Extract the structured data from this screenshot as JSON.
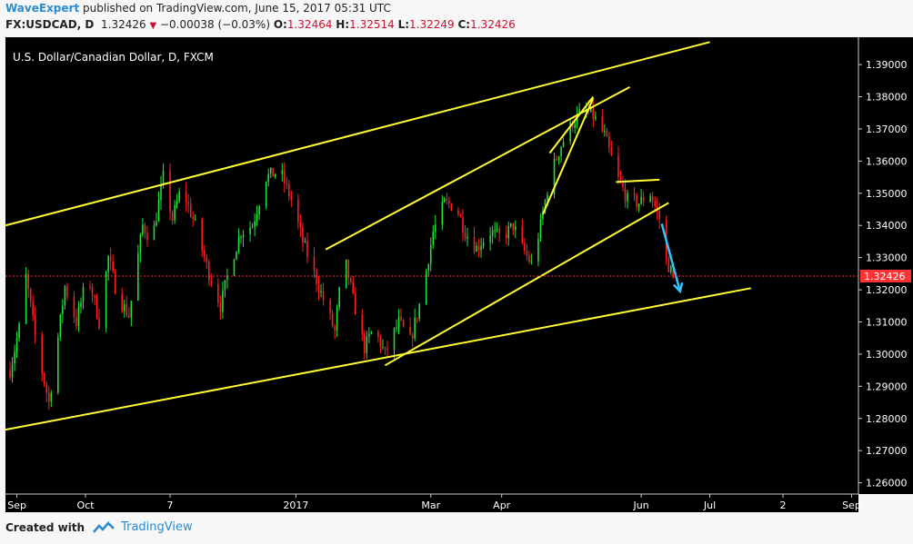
{
  "header": {
    "author": "WaveExpert",
    "published_text": "published on TradingView.com, June 15, 2017 05:31 UTC",
    "symbol": "FX:USDCAD, D",
    "last": "1.32426",
    "change": "−0.00038 (−0.03%)",
    "o_label": "O:",
    "o_value": "1.32464",
    "h_label": "H:",
    "h_value": "1.32514",
    "l_label": "L:",
    "l_value": "1.32249",
    "c_label": "C:",
    "c_value": "1.32426"
  },
  "footer": {
    "created_with": "Created with",
    "brand": "TradingView"
  },
  "colors": {
    "up": "#22e33a",
    "down": "#ff2020",
    "trendline": "#ffff33",
    "arrow": "#33c3ff",
    "last_price": "#ff3333",
    "background": "#000000"
  },
  "chart_data": {
    "type": "candlestick",
    "title": "U.S. Dollar/Canadian Dollar, D, FXCM",
    "y_ticks": [
      "1.26000",
      "1.27000",
      "1.28000",
      "1.29000",
      "1.30000",
      "1.31000",
      "1.32000",
      "1.33000",
      "1.34000",
      "1.35000",
      "1.36000",
      "1.37000",
      "1.38000",
      "1.39000"
    ],
    "ylim": [
      1.2565,
      1.3985
    ],
    "x_ticks": [
      {
        "label": "Sep",
        "x": "2016-09-01"
      },
      {
        "label": "Oct",
        "x": "2016-10-01"
      },
      {
        "label": "7",
        "x": "2016-11-07"
      },
      {
        "label": "2017",
        "x": "2017-01-01"
      },
      {
        "label": "Mar",
        "x": "2017-03-01"
      },
      {
        "label": "Apr",
        "x": "2017-04-01"
      },
      {
        "label": "Jun",
        "x": "2017-06-01"
      },
      {
        "label": "Jul",
        "x": "2017-07-01"
      },
      {
        "label": "2",
        "x": "2017-08-02"
      },
      {
        "label": "Sep",
        "x": "2017-09-01"
      }
    ],
    "xlim": [
      "2016-08-27",
      "2017-09-04"
    ],
    "last_price_label": "1.32426",
    "last_price": 1.32426,
    "trendlines": [
      {
        "x1": "2016-08-27",
        "y1": 1.34,
        "x2": "2017-07-01",
        "y2": 1.397
      },
      {
        "x1": "2016-08-27",
        "y1": 1.2765,
        "x2": "2017-07-19",
        "y2": 1.3205
      },
      {
        "x1": "2017-01-14",
        "y1": 1.3325,
        "x2": "2017-05-27",
        "y2": 1.383
      },
      {
        "x1": "2017-02-09",
        "y1": 1.2965,
        "x2": "2017-06-13",
        "y2": 1.347
      },
      {
        "x1": "2017-04-19",
        "y1": 1.3435,
        "x2": "2017-05-11",
        "y2": 1.3795
      },
      {
        "x1": "2017-04-22",
        "y1": 1.3625,
        "x2": "2017-05-11",
        "y2": 1.38
      },
      {
        "x1": "2017-05-21",
        "y1": 1.3535,
        "x2": "2017-06-09",
        "y2": 1.3542
      }
    ],
    "arrow": {
      "x1": "2017-06-10",
      "y1": 1.3405,
      "x2": "2017-06-18",
      "y2": 1.3195
    },
    "candles_path": [
      [
        "2016-08-29",
        1.295
      ],
      [
        "2016-09-02",
        1.308
      ],
      [
        "2016-09-05",
        1.324
      ],
      [
        "2016-09-10",
        1.301
      ],
      [
        "2016-09-15",
        1.285
      ],
      [
        "2016-09-18",
        1.3
      ],
      [
        "2016-09-22",
        1.321
      ],
      [
        "2016-09-27",
        1.31
      ],
      [
        "2016-10-02",
        1.325
      ],
      [
        "2016-10-07",
        1.31
      ],
      [
        "2016-10-11",
        1.33
      ],
      [
        "2016-10-15",
        1.318
      ],
      [
        "2016-10-20",
        1.312
      ],
      [
        "2016-10-26",
        1.34
      ],
      [
        "2016-10-30",
        1.335
      ],
      [
        "2016-11-04",
        1.355
      ],
      [
        "2016-11-08",
        1.342
      ],
      [
        "2016-11-12",
        1.352
      ],
      [
        "2016-11-18",
        1.34
      ],
      [
        "2016-11-24",
        1.325
      ],
      [
        "2016-11-29",
        1.315
      ],
      [
        "2016-12-03",
        1.327
      ],
      [
        "2016-12-08",
        1.338
      ],
      [
        "2016-12-13",
        1.34
      ],
      [
        "2016-12-19",
        1.355
      ],
      [
        "2016-12-25",
        1.357
      ],
      [
        "2016-12-30",
        1.348
      ],
      [
        "2017-01-04",
        1.335
      ],
      [
        "2017-01-09",
        1.325
      ],
      [
        "2017-01-14",
        1.315
      ],
      [
        "2017-01-18",
        1.307
      ],
      [
        "2017-01-22",
        1.331
      ],
      [
        "2017-01-26",
        1.317
      ],
      [
        "2017-01-31",
        1.302
      ],
      [
        "2017-02-04",
        1.308
      ],
      [
        "2017-02-09",
        1.3
      ],
      [
        "2017-02-15",
        1.31
      ],
      [
        "2017-02-20",
        1.304
      ],
      [
        "2017-02-25",
        1.318
      ],
      [
        "2017-03-02",
        1.338
      ],
      [
        "2017-03-07",
        1.347
      ],
      [
        "2017-03-12",
        1.346
      ],
      [
        "2017-03-16",
        1.338
      ],
      [
        "2017-03-21",
        1.333
      ],
      [
        "2017-03-27",
        1.338
      ],
      [
        "2017-04-01",
        1.336
      ],
      [
        "2017-04-06",
        1.34
      ],
      [
        "2017-04-10",
        1.333
      ],
      [
        "2017-04-14",
        1.328
      ],
      [
        "2017-04-18",
        1.34
      ],
      [
        "2017-04-22",
        1.355
      ],
      [
        "2017-04-27",
        1.365
      ],
      [
        "2017-05-02",
        1.372
      ],
      [
        "2017-05-07",
        1.376
      ],
      [
        "2017-05-11",
        1.374
      ],
      [
        "2017-05-16",
        1.368
      ],
      [
        "2017-05-21",
        1.356
      ],
      [
        "2017-05-26",
        1.348
      ],
      [
        "2017-05-31",
        1.347
      ],
      [
        "2017-06-05",
        1.35
      ],
      [
        "2017-06-09",
        1.342
      ],
      [
        "2017-06-12",
        1.329
      ],
      [
        "2017-06-15",
        1.3243
      ]
    ]
  }
}
